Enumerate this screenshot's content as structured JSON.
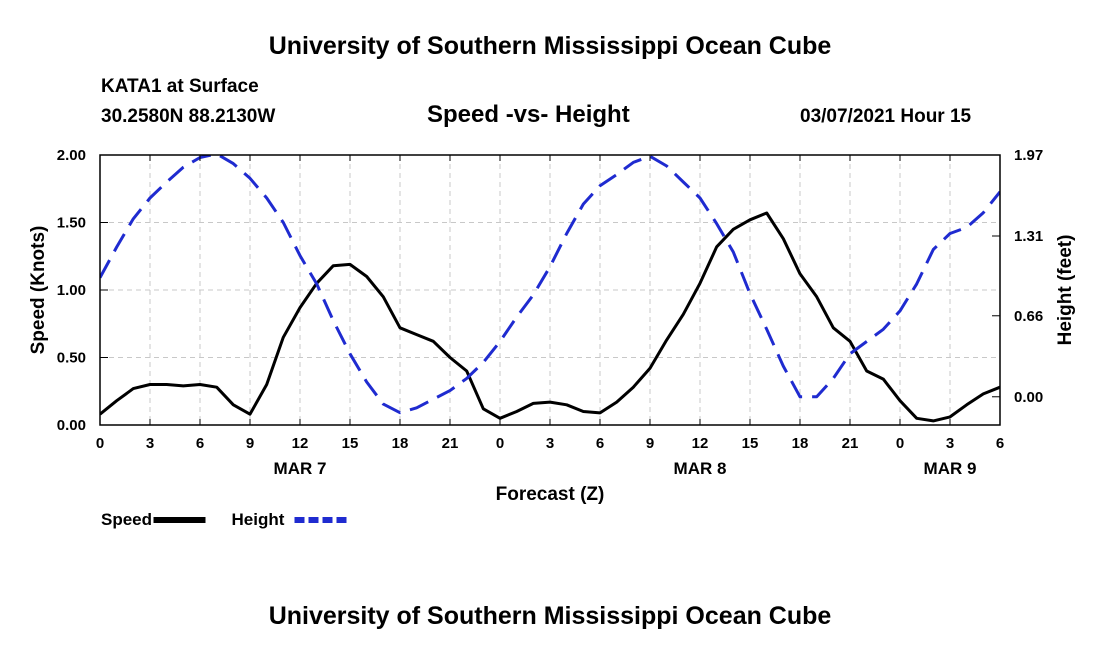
{
  "header": {
    "title": "University of Southern Mississippi Ocean Cube",
    "station": "KATA1 at Surface",
    "coords": "30.2580N 88.2130W",
    "plot_title": "Speed -vs- Height",
    "datetime": "03/07/2021 Hour 15"
  },
  "footer": {
    "title": "University of Southern Mississippi Ocean Cube"
  },
  "chart_data": {
    "type": "line",
    "title": "Speed -vs- Height",
    "xlabel": "Forecast (Z)",
    "ylabel": "Speed (Knots)",
    "y2label": "Height (feet)",
    "x_range_hours": [
      0,
      54
    ],
    "x_ticks": [
      {
        "h": 0,
        "label": "0"
      },
      {
        "h": 3,
        "label": "3"
      },
      {
        "h": 6,
        "label": "6"
      },
      {
        "h": 9,
        "label": "9"
      },
      {
        "h": 12,
        "label": "12"
      },
      {
        "h": 15,
        "label": "15"
      },
      {
        "h": 18,
        "label": "18"
      },
      {
        "h": 21,
        "label": "21"
      },
      {
        "h": 24,
        "label": "0"
      },
      {
        "h": 27,
        "label": "3"
      },
      {
        "h": 30,
        "label": "6"
      },
      {
        "h": 33,
        "label": "9"
      },
      {
        "h": 36,
        "label": "12"
      },
      {
        "h": 39,
        "label": "15"
      },
      {
        "h": 42,
        "label": "18"
      },
      {
        "h": 45,
        "label": "21"
      },
      {
        "h": 48,
        "label": "0"
      },
      {
        "h": 51,
        "label": "3"
      },
      {
        "h": 54,
        "label": "6"
      }
    ],
    "date_labels": [
      {
        "h": 12,
        "label": "MAR 7"
      },
      {
        "h": 36,
        "label": "MAR 8"
      },
      {
        "h": 51,
        "label": "MAR 9"
      }
    ],
    "ylim": [
      0,
      2
    ],
    "y_ticks": [
      {
        "v": 0,
        "label": "0.00"
      },
      {
        "v": 0.5,
        "label": "0.50"
      },
      {
        "v": 1,
        "label": "1.00"
      },
      {
        "v": 1.5,
        "label": "1.50"
      },
      {
        "v": 2,
        "label": "2.00"
      }
    ],
    "y2lim": [
      -0.23,
      1.97
    ],
    "y2_ticks": [
      {
        "v": 0,
        "label": "0.00"
      },
      {
        "v": 0.66,
        "label": "0.66"
      },
      {
        "v": 1.31,
        "label": "1.31"
      },
      {
        "v": 1.97,
        "label": "1.97"
      }
    ],
    "grid": true,
    "series": [
      {
        "name": "Speed",
        "color": "#000000",
        "dash": "solid",
        "axis": "left",
        "x": [
          0,
          1,
          2,
          3,
          4,
          5,
          6,
          7,
          8,
          9,
          10,
          11,
          12,
          13,
          14,
          15,
          16,
          17,
          18,
          19,
          20,
          21,
          22,
          23,
          24,
          25,
          26,
          27,
          28,
          29,
          30,
          31,
          32,
          33,
          34,
          35,
          36,
          37,
          38,
          39,
          40,
          41,
          42,
          43,
          44,
          45,
          46,
          47,
          48,
          49,
          50,
          51,
          52,
          53,
          54
        ],
        "values": [
          0.08,
          0.18,
          0.27,
          0.3,
          0.3,
          0.29,
          0.3,
          0.28,
          0.15,
          0.08,
          0.3,
          0.65,
          0.87,
          1.05,
          1.18,
          1.19,
          1.1,
          0.95,
          0.72,
          0.67,
          0.62,
          0.5,
          0.4,
          0.12,
          0.05,
          0.1,
          0.16,
          0.17,
          0.15,
          0.1,
          0.09,
          0.17,
          0.28,
          0.42,
          0.63,
          0.82,
          1.05,
          1.32,
          1.45,
          1.52,
          1.57,
          1.38,
          1.12,
          0.95,
          0.72,
          0.62,
          0.4,
          0.34,
          0.18,
          0.05,
          0.03,
          0.06,
          0.15,
          0.23,
          0.28
        ]
      },
      {
        "name": "Height",
        "color": "#1f2bd0",
        "dash": "dashed",
        "axis": "right",
        "x": [
          0,
          1,
          2,
          3,
          4,
          5,
          6,
          7,
          8,
          9,
          10,
          11,
          12,
          13,
          14,
          15,
          16,
          17,
          18,
          19,
          20,
          21,
          22,
          23,
          24,
          25,
          26,
          27,
          28,
          29,
          30,
          31,
          32,
          33,
          34,
          35,
          36,
          37,
          38,
          39,
          40,
          41,
          42,
          43,
          44,
          45,
          46,
          47,
          48,
          49,
          50,
          51,
          52,
          53,
          54
        ],
        "values": [
          0.97,
          1.22,
          1.45,
          1.62,
          1.75,
          1.87,
          1.95,
          1.98,
          1.9,
          1.78,
          1.62,
          1.42,
          1.15,
          0.92,
          0.62,
          0.35,
          0.12,
          -0.06,
          -0.13,
          -0.09,
          -0.02,
          0.05,
          0.15,
          0.28,
          0.45,
          0.65,
          0.83,
          1.06,
          1.33,
          1.57,
          1.72,
          1.81,
          1.91,
          1.96,
          1.88,
          1.75,
          1.62,
          1.41,
          1.18,
          0.84,
          0.55,
          0.25,
          0.0,
          0.0,
          0.15,
          0.35,
          0.45,
          0.55,
          0.7,
          0.92,
          1.2,
          1.33,
          1.38,
          1.5,
          1.67
        ]
      }
    ]
  },
  "legend": [
    {
      "label": "Speed",
      "color": "#000000",
      "dash": "solid"
    },
    {
      "label": "Height",
      "color": "#1f2bd0",
      "dash": "dashed"
    }
  ]
}
